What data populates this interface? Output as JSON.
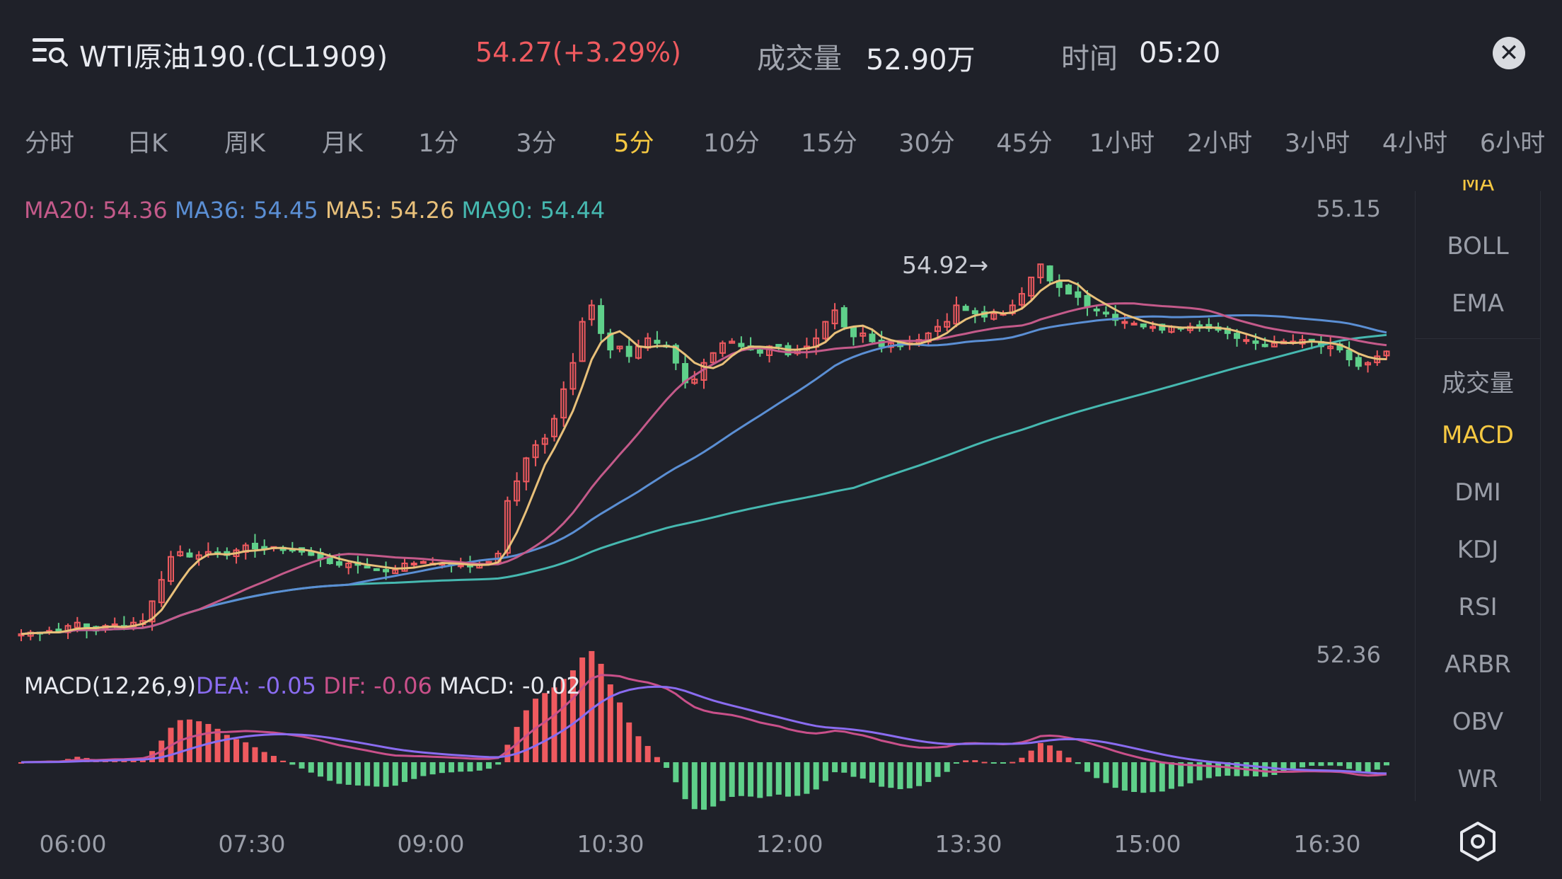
{
  "header": {
    "title": "WTI原油190.(CL1909)",
    "price": "54.27(+3.29%)",
    "volume_label": "成交量",
    "volume_value": "52.90万",
    "time_label": "时间",
    "time_value": "05:20",
    "close_label": "✕"
  },
  "tabs": [
    "分时",
    "日K",
    "周K",
    "月K",
    "1分",
    "3分",
    "5分",
    "10分",
    "15分",
    "30分",
    "45分",
    "1小时",
    "2小时",
    "3小时",
    "4小时",
    "6小时"
  ],
  "active_tab": "5分",
  "ma_legend": {
    "ma20": "MA20: 54.36",
    "ma36": "MA36: 54.45",
    "ma5": "MA5: 54.26",
    "ma90": "MA90: 54.44"
  },
  "macd_legend": {
    "name": "MACD(12,26,9)",
    "dea": "DEA: -0.05",
    "dif": "DIF: -0.06",
    "macd": "MACD: -0.02"
  },
  "axis": {
    "top_price": "55.15",
    "bottom_price": "52.36",
    "high_marker": "54.92→"
  },
  "time_labels": [
    "06:00",
    "07:30",
    "09:00",
    "10:30",
    "12:00",
    "13:30",
    "15:00",
    "16:30"
  ],
  "side_menu": {
    "top_partial": "MA",
    "overlays": [
      "BOLL",
      "EMA"
    ],
    "indicators": [
      "成交量",
      "MACD",
      "DMI",
      "KDJ",
      "RSI",
      "ARBR",
      "OBV",
      "WR"
    ],
    "active": "MACD"
  },
  "colors": {
    "up": "#ef5a5f",
    "down": "#5fd08a",
    "ma5": "#e8c07a",
    "ma20": "#c45a8a",
    "ma36": "#5b8fd4",
    "ma90": "#46b8b0",
    "dea": "#8a6cf0",
    "dif": "#c9508a",
    "active": "#f5c842"
  },
  "chart_data": {
    "type": "candlestick",
    "interval": "5分",
    "y_range": [
      52.36,
      55.15
    ],
    "x_ticks": [
      "06:00",
      "07:30",
      "09:00",
      "10:30",
      "12:00",
      "13:30",
      "15:00",
      "16:30"
    ],
    "close_path": [
      52.55,
      52.56,
      52.56,
      52.57,
      52.56,
      52.6,
      52.62,
      52.58,
      52.57,
      52.6,
      52.61,
      52.6,
      52.62,
      52.63,
      52.75,
      52.88,
      53.02,
      53.05,
      53.02,
      53.03,
      53.05,
      53.04,
      53.03,
      53.06,
      53.09,
      53.07,
      53.07,
      53.08,
      53.06,
      53.06,
      53.05,
      53.03,
      53.01,
      52.98,
      52.97,
      52.98,
      52.97,
      52.96,
      52.94,
      52.93,
      52.94,
      52.98,
      52.98,
      52.99,
      52.98,
      52.98,
      52.97,
      52.97,
      52.96,
      52.97,
      52.99,
      53.04,
      53.36,
      53.48,
      53.62,
      53.7,
      53.74,
      53.86,
      54.04,
      54.2,
      54.45,
      54.55,
      54.38,
      54.28,
      54.3,
      54.24,
      54.3,
      54.35,
      54.32,
      54.3,
      54.2,
      54.08,
      54.1,
      54.2,
      54.26,
      54.32,
      54.33,
      54.3,
      54.28,
      54.26,
      54.3,
      54.31,
      54.25,
      54.28,
      54.3,
      54.35,
      54.45,
      54.52,
      54.42,
      54.36,
      54.38,
      54.33,
      54.3,
      54.32,
      54.3,
      54.32,
      54.34,
      54.38,
      54.42,
      54.45,
      54.55,
      54.52,
      54.5,
      54.48,
      54.5,
      54.5,
      54.55,
      54.62,
      54.72,
      54.8,
      54.7,
      54.66,
      54.62,
      54.6,
      54.54,
      54.52,
      54.5,
      54.46,
      54.45,
      54.44,
      54.42,
      54.42,
      54.4,
      54.42,
      54.41,
      54.42,
      54.42,
      54.41,
      54.4,
      54.38,
      54.35,
      54.34,
      54.32,
      54.3,
      54.32,
      54.33,
      54.33,
      54.34,
      54.33,
      54.3,
      54.3,
      54.28,
      54.22,
      54.18,
      54.2,
      54.24,
      54.27
    ],
    "ma5": "yellow line tracking close",
    "series": [
      {
        "name": "MA20",
        "last": 54.36
      },
      {
        "name": "MA36",
        "last": 54.45
      },
      {
        "name": "MA5",
        "last": 54.26
      },
      {
        "name": "MA90",
        "last": 54.44
      }
    ],
    "macd": {
      "dea": -0.05,
      "dif": -0.06,
      "macd": -0.02
    }
  }
}
